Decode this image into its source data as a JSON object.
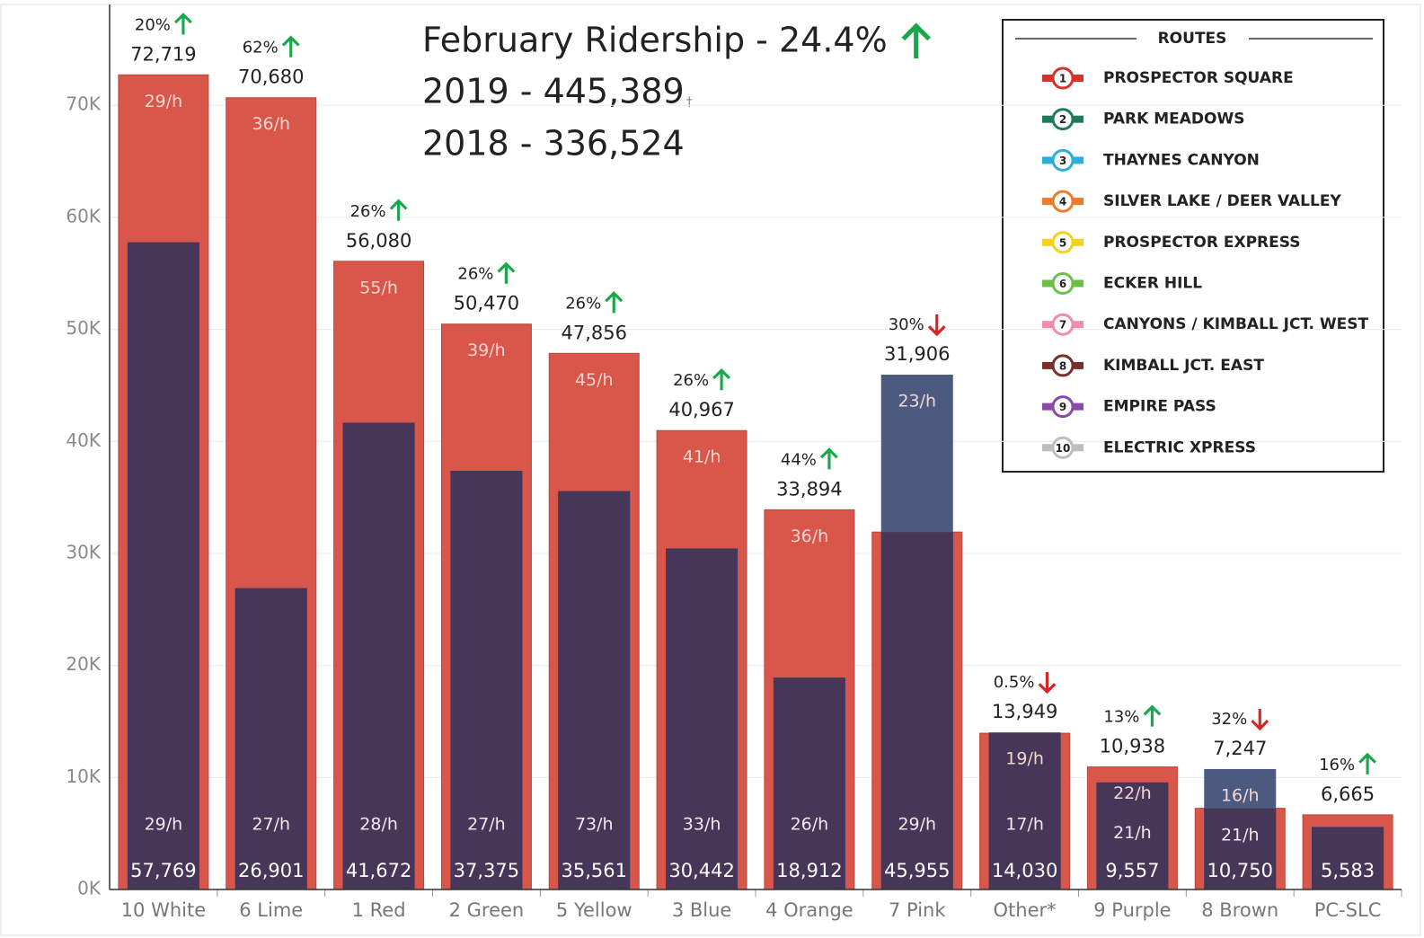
{
  "chart_data": {
    "type": "overlap_bar",
    "title": "February Ridership  - 24.4%",
    "title_direction": "up",
    "subtitle_lines": [
      "2019 - 445,389",
      "2018 - 336,524"
    ],
    "subtitle_mark": "†",
    "categories": [
      "10 White",
      "6 Lime",
      "1 Red",
      "2 Green",
      "5 Yellow",
      "3 Blue",
      "4 Orange",
      "7 Pink",
      "Other*",
      "9 Purple",
      "8 Brown",
      "PC-SLC"
    ],
    "series": [
      {
        "color": "#d9574a",
        "values": [
          72719,
          70680,
          56080,
          50470,
          47856,
          40967,
          33894,
          31906,
          13949,
          10938,
          7247,
          6665
        ],
        "value_labels": [
          "72,719",
          "70,680",
          "56,080",
          "50,470",
          "47,856",
          "40,967",
          "33,894",
          "31,906",
          "13,949",
          "10,938",
          "7,247",
          "6,665"
        ]
      },
      {
        "color": "#4c5a80",
        "overlap_color": "#463657",
        "values": [
          57769,
          26901,
          41672,
          37375,
          35561,
          30442,
          18912,
          45955,
          14030,
          9557,
          10750,
          5583
        ],
        "value_labels": [
          "57,769",
          "26,901",
          "41,672",
          "37,375",
          "35,561",
          "30,442",
          "18,912",
          "45,955",
          "14,030",
          "9,557",
          "10,750",
          "5,583"
        ]
      }
    ],
    "change_labels": [
      "20%",
      "62%",
      "26%",
      "26%",
      "26%",
      "26%",
      "44%",
      "30%",
      "0.5%",
      "13%",
      "32%",
      "16%"
    ],
    "change_directions": [
      "up",
      "up",
      "up",
      "up",
      "up",
      "up",
      "up",
      "down",
      "down",
      "up",
      "down",
      "up"
    ],
    "upper_rates": [
      "29/h",
      "36/h",
      "55/h",
      "39/h",
      "45/h",
      "41/h",
      "36/h",
      "23/h",
      "19/h",
      "22/h",
      "16/h",
      null
    ],
    "lower_rates": [
      "29/h",
      "27/h",
      "28/h",
      "27/h",
      "73/h",
      "33/h",
      "26/h",
      "29/h",
      "17/h",
      "21/h",
      "21/h",
      null
    ],
    "ylim": [
      0,
      79000
    ],
    "yticks": [
      {
        "value": 0,
        "label": "0K"
      },
      {
        "value": 10000,
        "label": "10K"
      },
      {
        "value": 20000,
        "label": "20K"
      },
      {
        "value": 30000,
        "label": "30K"
      },
      {
        "value": 40000,
        "label": "40K"
      },
      {
        "value": 50000,
        "label": "50K"
      },
      {
        "value": 60000,
        "label": "60K"
      },
      {
        "value": 70000,
        "label": "70K"
      }
    ],
    "grid": true,
    "legend": {
      "title": "ROUTES",
      "entries": [
        {
          "number": "1",
          "name": "PROSPECTOR SQUARE",
          "color": "#d9302c"
        },
        {
          "number": "2",
          "name": "PARK MEADOWS",
          "color": "#1f7a5a"
        },
        {
          "number": "3",
          "name": "THAYNES CANYON",
          "color": "#2ab0d8"
        },
        {
          "number": "4",
          "name": "SILVER LAKE / DEER VALLEY",
          "color": "#ef7a2a"
        },
        {
          "number": "5",
          "name": "PROSPECTOR EXPRESS",
          "color": "#f2d21c"
        },
        {
          "number": "6",
          "name": "ECKER HILL",
          "color": "#6cbf4a"
        },
        {
          "number": "7",
          "name": "CANYONS / KIMBALL JCT. WEST",
          "color": "#f08cb0"
        },
        {
          "number": "8",
          "name": "KIMBALL JCT. EAST",
          "color": "#7a2e2a"
        },
        {
          "number": "9",
          "name": "EMPIRE PASS",
          "color": "#8a4aa8"
        },
        {
          "number": "10",
          "name": "ELECTRIC XPRESS",
          "color": "#bdbdbd"
        }
      ]
    }
  }
}
